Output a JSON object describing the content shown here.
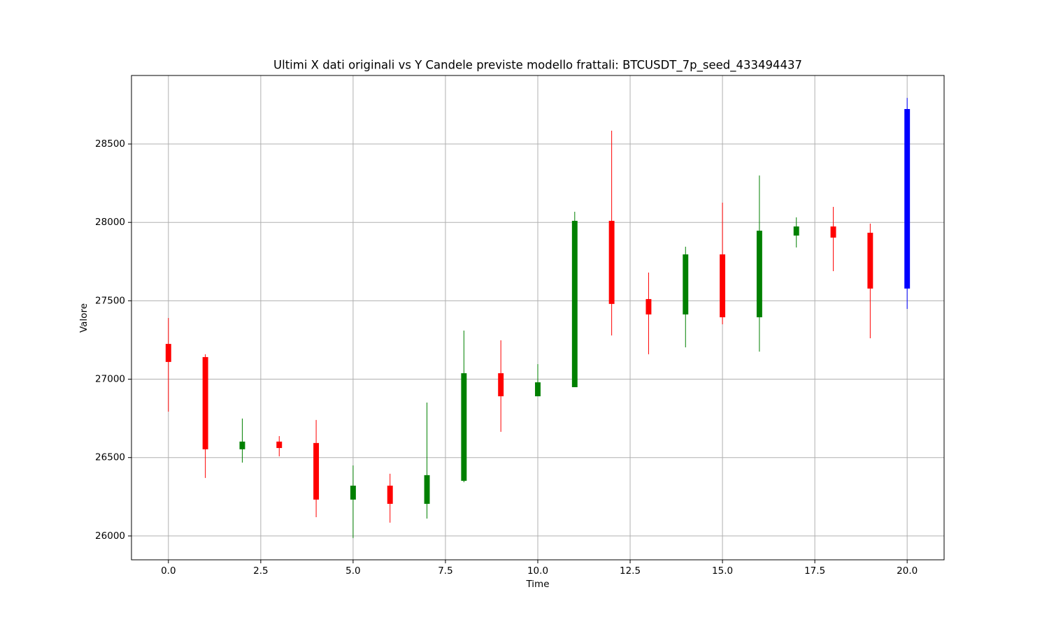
{
  "chart_data": {
    "type": "candlestick",
    "title": "Ultimi X dati originali vs Y Candele previste modello frattali: BTCUSDT_7p_seed_433494437",
    "x_label": "Time",
    "y_label": "Valore",
    "x": [
      0,
      1,
      2,
      3,
      4,
      5,
      6,
      7,
      8,
      9,
      10,
      11,
      12,
      13,
      14,
      15,
      16,
      17,
      18,
      19,
      20
    ],
    "open": [
      27225,
      27141,
      26553,
      26602,
      26593,
      26232,
      26321,
      26205,
      26352,
      27038,
      26891,
      26949,
      28010,
      27511,
      27413,
      27796,
      27395,
      27916,
      27974,
      27934,
      27578
    ],
    "high": [
      27390,
      27159,
      26749,
      26637,
      26740,
      26450,
      26397,
      26851,
      27310,
      27248,
      27096,
      28068,
      28585,
      27680,
      27845,
      28126,
      28299,
      28032,
      28099,
      27992,
      28794
    ],
    "low": [
      26793,
      26370,
      26468,
      26508,
      26120,
      25987,
      26085,
      26111,
      26343,
      26664,
      26891,
      26949,
      27279,
      27159,
      27203,
      27350,
      27176,
      27840,
      27689,
      27261,
      27448
    ],
    "close": [
      27110,
      26553,
      26602,
      26561,
      26232,
      26321,
      26205,
      26388,
      27038,
      26891,
      26980,
      28010,
      27480,
      27413,
      27796,
      27395,
      27947,
      27974,
      27903,
      27578,
      28723
    ],
    "colors": [
      "red",
      "red",
      "green",
      "red",
      "red",
      "green",
      "red",
      "green",
      "green",
      "red",
      "green",
      "green",
      "red",
      "red",
      "green",
      "red",
      "green",
      "green",
      "red",
      "red",
      "blue"
    ],
    "xlim": [
      -1,
      21
    ],
    "ylim": [
      25848,
      28937
    ],
    "xticks": [
      {
        "value": 0,
        "label": "0.0"
      },
      {
        "value": 2.5,
        "label": "2.5"
      },
      {
        "value": 5,
        "label": "5.0"
      },
      {
        "value": 7.5,
        "label": "7.5"
      },
      {
        "value": 10,
        "label": "10.0"
      },
      {
        "value": 12.5,
        "label": "12.5"
      },
      {
        "value": 15,
        "label": "15.0"
      },
      {
        "value": 17.5,
        "label": "17.5"
      },
      {
        "value": 20,
        "label": "20.0"
      }
    ],
    "yticks": [
      26000,
      26500,
      27000,
      27500,
      28000,
      28500
    ],
    "grid": true
  }
}
